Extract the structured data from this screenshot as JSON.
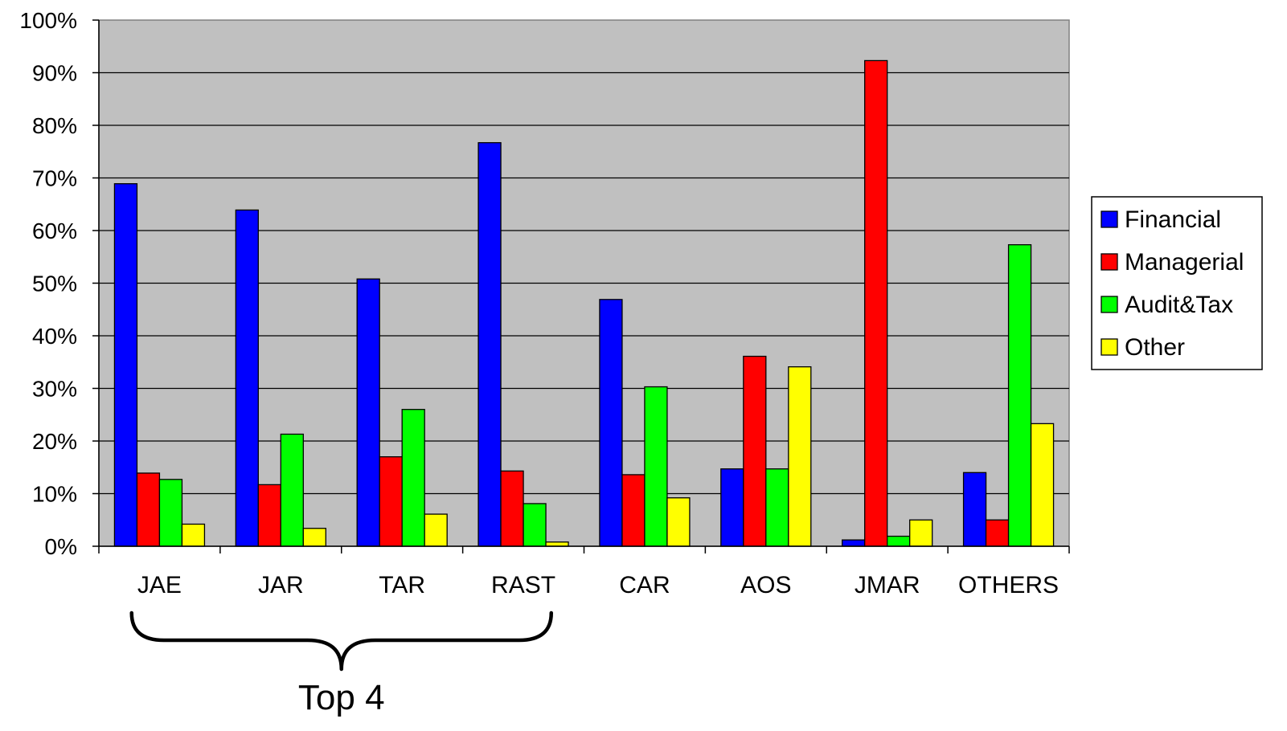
{
  "chart_data": {
    "type": "bar",
    "title": "",
    "xlabel": "",
    "ylabel": "",
    "ylim": [
      0,
      100
    ],
    "y_ticks": [
      "0%",
      "10%",
      "20%",
      "30%",
      "40%",
      "50%",
      "60%",
      "70%",
      "80%",
      "90%",
      "100%"
    ],
    "categories": [
      "JAE",
      "JAR",
      "TAR",
      "RAST",
      "CAR",
      "AOS",
      "JMAR",
      "OTHERS"
    ],
    "series": [
      {
        "name": "Financial",
        "color": "#0000ff",
        "values": [
          68.9,
          63.9,
          50.8,
          76.7,
          46.9,
          14.7,
          1.2,
          14.0
        ]
      },
      {
        "name": "Managerial",
        "color": "#ff0000",
        "values": [
          13.9,
          11.7,
          17.0,
          14.3,
          13.6,
          36.1,
          92.3,
          5.0
        ]
      },
      {
        "name": "Audit&Tax",
        "color": "#00ff00",
        "values": [
          12.7,
          21.3,
          26.0,
          8.1,
          30.3,
          14.7,
          1.9,
          57.3
        ]
      },
      {
        "name": "Other",
        "color": "#ffff00",
        "values": [
          4.2,
          3.4,
          6.1,
          0.8,
          9.2,
          34.1,
          5.0,
          23.3
        ]
      }
    ],
    "plot_background": "#c0c0c0",
    "grid": true,
    "legend_position": "right",
    "annotations": [
      {
        "text": "Top 4",
        "spans_categories": [
          "JAE",
          "JAR",
          "TAR",
          "RAST"
        ],
        "shape": "curly-brace"
      }
    ]
  }
}
